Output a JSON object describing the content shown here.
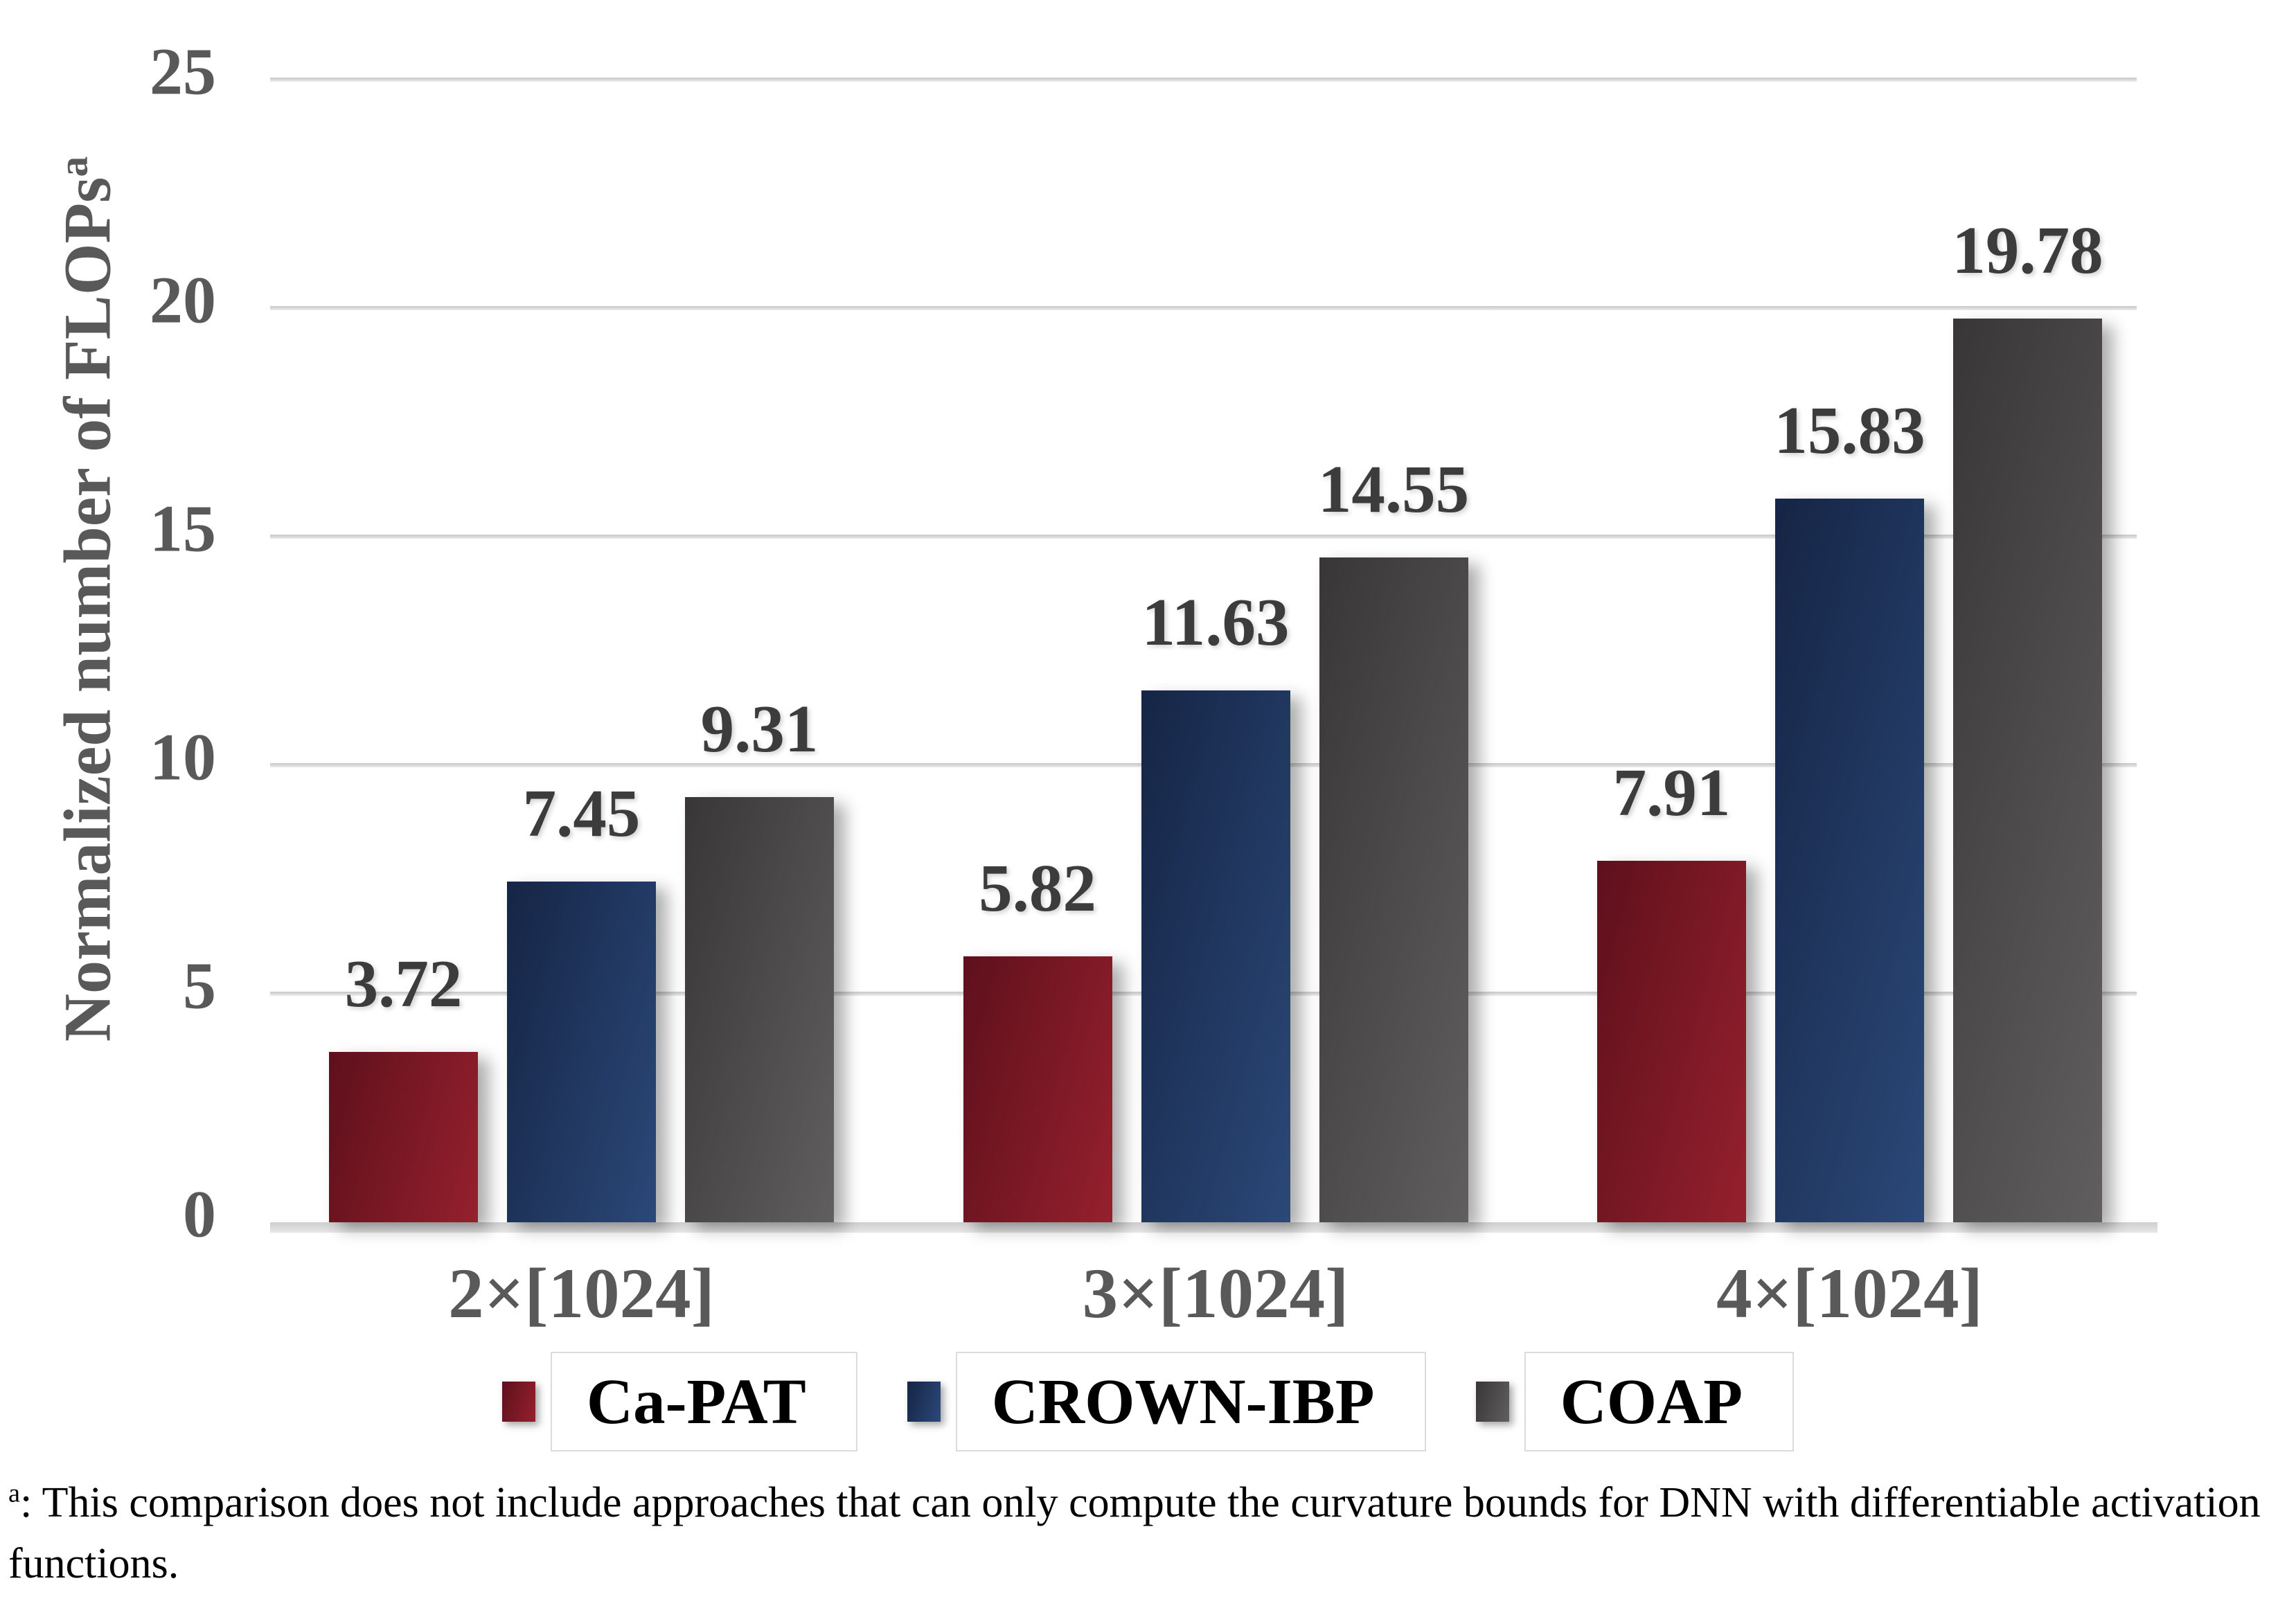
{
  "chart_data": {
    "type": "bar",
    "categories": [
      "2×[1024]",
      "3×[1024]",
      "4×[1024]"
    ],
    "series": [
      {
        "name": "Ca-PAT",
        "values": [
          3.72,
          5.82,
          7.91
        ],
        "color": "#8B1B27",
        "gradient_from": "#5e101c",
        "gradient_to": "#95202d"
      },
      {
        "name": "CROWN-IBP",
        "values": [
          7.45,
          11.63,
          15.83
        ],
        "color": "#1F3560",
        "gradient_from": "#152545",
        "gradient_to": "#2b4878"
      },
      {
        "name": "COAP",
        "values": [
          9.31,
          14.55,
          19.78
        ],
        "color": "#4D4B4C",
        "gradient_from": "#383637",
        "gradient_to": "#605e5f"
      }
    ],
    "title": "",
    "xlabel": "",
    "ylabel": "Normalized number of FLOPs",
    "ylabel_superscript": "a",
    "ylim": [
      0,
      25
    ],
    "yticks": [
      25,
      20,
      15,
      10,
      5,
      0
    ],
    "grid": true,
    "legend_position": "bottom",
    "value_label_decimals": 2
  },
  "footnote": {
    "marker": "a",
    "text": ": This comparison does not include approaches that can only compute the curvature bounds for DNN with differentiable activation functions."
  },
  "colors": {
    "grid_line": "#d4d4d4",
    "axis_line": "#cfcfcf",
    "tick_label": "#595959",
    "value_label": "#3c3c3c",
    "category_label": "#595959",
    "legend_text": "#000000",
    "background": "#ffffff"
  }
}
